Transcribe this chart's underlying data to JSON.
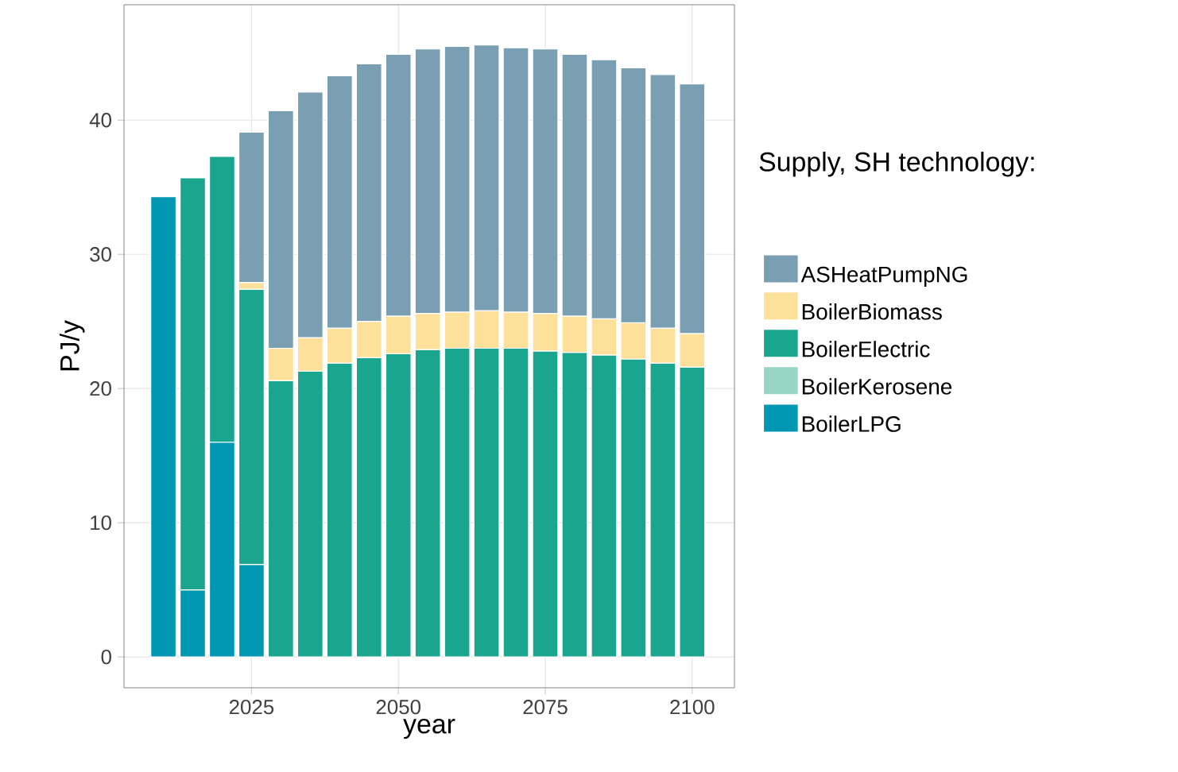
{
  "chart_data": {
    "type": "bar",
    "stacked": true,
    "xlabel": "year",
    "ylabel": "PJ/y",
    "legend_title": "Supply, SH technology:",
    "x": [
      2010,
      2015,
      2020,
      2025,
      2030,
      2035,
      2040,
      2045,
      2050,
      2055,
      2060,
      2065,
      2070,
      2075,
      2080,
      2085,
      2090,
      2095,
      2100
    ],
    "series": [
      {
        "name": "BoilerLPG",
        "color": "#0097b2",
        "values": [
          34.3,
          5.0,
          16.0,
          6.9,
          null,
          null,
          null,
          null,
          null,
          null,
          null,
          null,
          null,
          null,
          null,
          null,
          null,
          null,
          null
        ]
      },
      {
        "name": "BoilerKerosene",
        "color": "#98d5c5",
        "values": [
          null,
          null,
          null,
          null,
          null,
          null,
          null,
          null,
          null,
          null,
          null,
          null,
          null,
          null,
          null,
          null,
          null,
          null,
          null
        ]
      },
      {
        "name": "BoilerElectric",
        "color": "#1aa68e",
        "values": [
          null,
          30.7,
          21.3,
          20.5,
          20.6,
          21.3,
          21.9,
          22.3,
          22.6,
          22.9,
          23.0,
          23.0,
          23.0,
          22.8,
          22.7,
          22.5,
          22.2,
          21.9,
          21.6
        ]
      },
      {
        "name": "BoilerBiomass",
        "color": "#fde19a",
        "values": [
          null,
          null,
          null,
          0.5,
          2.4,
          2.5,
          2.6,
          2.7,
          2.8,
          2.7,
          2.7,
          2.8,
          2.7,
          2.8,
          2.7,
          2.7,
          2.7,
          2.6,
          2.5
        ]
      },
      {
        "name": "ASHeatPumpNG",
        "color": "#7a9fb3",
        "values": [
          null,
          null,
          null,
          11.2,
          17.7,
          18.3,
          18.8,
          19.2,
          19.5,
          19.7,
          19.8,
          19.8,
          19.7,
          19.7,
          19.5,
          19.3,
          19.0,
          18.9,
          18.6
        ]
      }
    ],
    "xlim": [
      2003.3,
      2107.2
    ],
    "ylim": [
      -2.3,
      48.6
    ],
    "xticks": [
      2025,
      2050,
      2075,
      2100
    ],
    "yticks": [
      0,
      10,
      20,
      30,
      40
    ],
    "grid": true,
    "legend": "right"
  }
}
